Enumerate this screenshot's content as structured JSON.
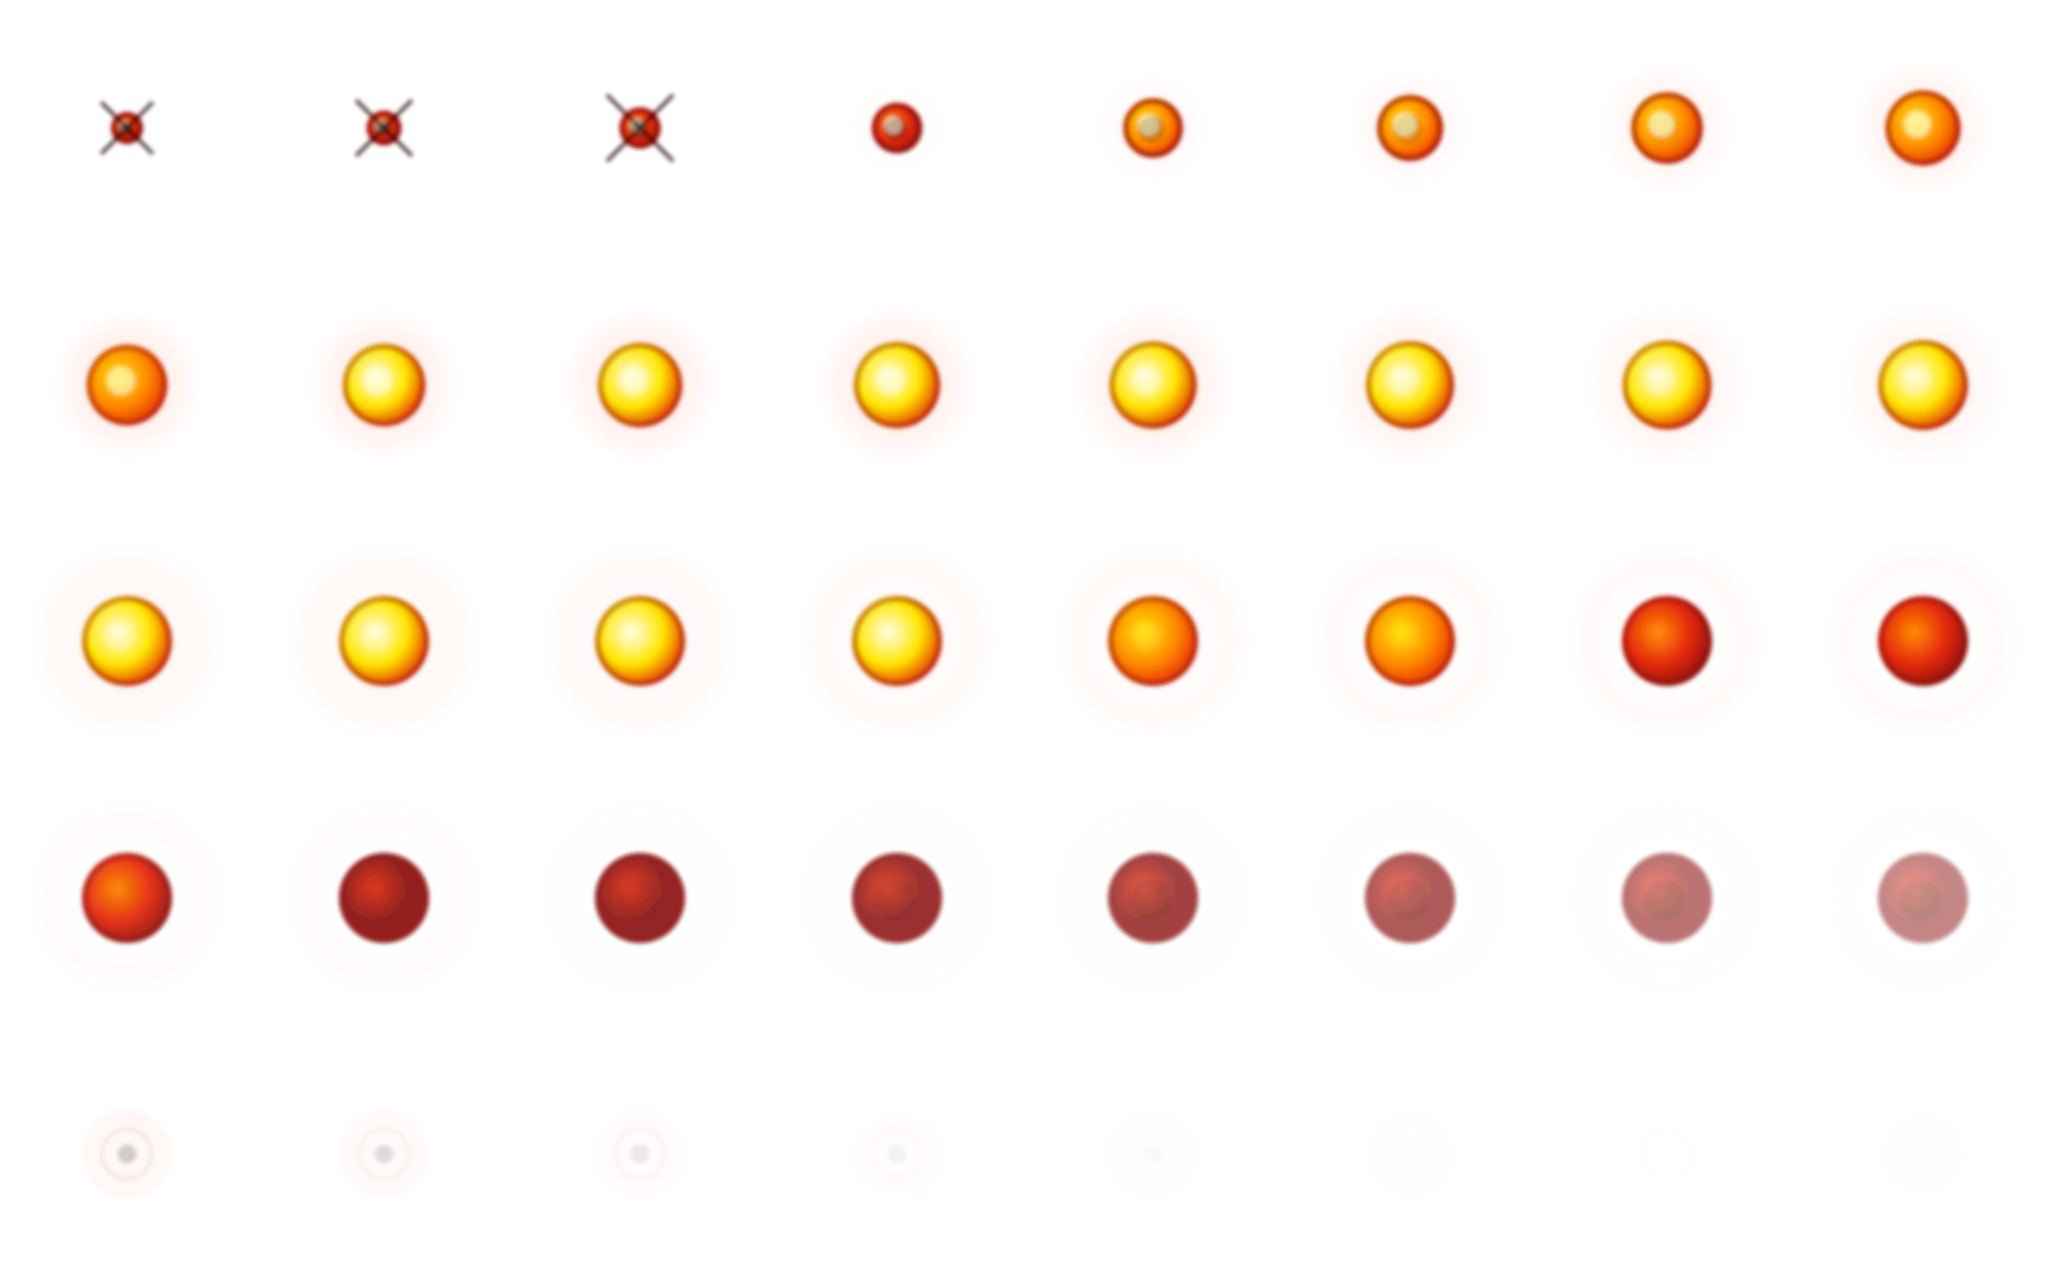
{
  "figure": {
    "rows": 5,
    "cols": 8,
    "frames": [
      {
        "brightness": 0.55,
        "halo": 0.0,
        "radius": 0.35,
        "core": 0.9,
        "dark": 0.9,
        "ring": 0.0,
        "fade": 1.0
      },
      {
        "brightness": 0.55,
        "halo": 0.0,
        "radius": 0.38,
        "core": 0.9,
        "dark": 0.85,
        "ring": 0.0,
        "fade": 1.0
      },
      {
        "brightness": 0.6,
        "halo": 0.05,
        "radius": 0.45,
        "core": 0.9,
        "dark": 0.75,
        "ring": 0.0,
        "fade": 1.0
      },
      {
        "brightness": 0.6,
        "halo": 0.1,
        "radius": 0.55,
        "core": 0.85,
        "dark": 0.65,
        "ring": 0.0,
        "fade": 1.0
      },
      {
        "brightness": 0.62,
        "halo": 0.15,
        "radius": 0.65,
        "core": 0.8,
        "dark": 0.55,
        "ring": 0.0,
        "fade": 1.0
      },
      {
        "brightness": 0.65,
        "halo": 0.2,
        "radius": 0.72,
        "core": 0.75,
        "dark": 0.45,
        "ring": 0.0,
        "fade": 1.0
      },
      {
        "brightness": 0.68,
        "halo": 0.3,
        "radius": 0.78,
        "core": 0.7,
        "dark": 0.35,
        "ring": 0.0,
        "fade": 1.0
      },
      {
        "brightness": 0.7,
        "halo": 0.35,
        "radius": 0.82,
        "core": 0.65,
        "dark": 0.25,
        "ring": 0.0,
        "fade": 1.0
      },
      {
        "brightness": 0.8,
        "halo": 0.45,
        "radius": 0.88,
        "core": 0.6,
        "dark": 0.1,
        "ring": 0.0,
        "fade": 1.0
      },
      {
        "brightness": 0.85,
        "halo": 0.45,
        "radius": 0.9,
        "core": 0.6,
        "dark": 0.1,
        "ring": 0.0,
        "fade": 1.0
      },
      {
        "brightness": 0.9,
        "halo": 0.45,
        "radius": 0.92,
        "core": 0.55,
        "dark": 0.1,
        "ring": 0.0,
        "fade": 1.0
      },
      {
        "brightness": 0.92,
        "halo": 0.45,
        "radius": 0.94,
        "core": 0.5,
        "dark": 0.1,
        "ring": 0.0,
        "fade": 1.0
      },
      {
        "brightness": 0.95,
        "halo": 0.4,
        "radius": 0.95,
        "core": 0.45,
        "dark": 0.1,
        "ring": 0.0,
        "fade": 1.0
      },
      {
        "brightness": 0.96,
        "halo": 0.35,
        "radius": 0.96,
        "core": 0.4,
        "dark": 0.1,
        "ring": 0.0,
        "fade": 1.0
      },
      {
        "brightness": 0.97,
        "halo": 0.3,
        "radius": 0.97,
        "core": 0.35,
        "dark": 0.1,
        "ring": 0.0,
        "fade": 1.0
      },
      {
        "brightness": 0.98,
        "halo": 0.28,
        "radius": 0.98,
        "core": 0.3,
        "dark": 0.1,
        "ring": 0.0,
        "fade": 1.0
      },
      {
        "brightness": 0.98,
        "halo": 0.25,
        "radius": 0.98,
        "core": 0.25,
        "dark": 0.1,
        "ring": 0.1,
        "fade": 1.0
      },
      {
        "brightness": 0.96,
        "halo": 0.22,
        "radius": 0.98,
        "core": 0.2,
        "dark": 0.1,
        "ring": 0.12,
        "fade": 1.0
      },
      {
        "brightness": 0.92,
        "halo": 0.18,
        "radius": 0.98,
        "core": 0.15,
        "dark": 0.12,
        "ring": 0.14,
        "fade": 1.0
      },
      {
        "brightness": 0.86,
        "halo": 0.15,
        "radius": 0.98,
        "core": 0.1,
        "dark": 0.15,
        "ring": 0.15,
        "fade": 1.0
      },
      {
        "brightness": 0.78,
        "halo": 0.12,
        "radius": 0.98,
        "core": 0.08,
        "dark": 0.18,
        "ring": 0.14,
        "fade": 1.0
      },
      {
        "brightness": 0.68,
        "halo": 0.1,
        "radius": 0.98,
        "core": 0.05,
        "dark": 0.22,
        "ring": 0.13,
        "fade": 1.0
      },
      {
        "brightness": 0.58,
        "halo": 0.08,
        "radius": 0.98,
        "core": 0.03,
        "dark": 0.25,
        "ring": 0.12,
        "fade": 1.0
      },
      {
        "brightness": 0.5,
        "halo": 0.06,
        "radius": 0.98,
        "core": 0.02,
        "dark": 0.28,
        "ring": 0.11,
        "fade": 1.0
      },
      {
        "brightness": 0.45,
        "halo": 0.05,
        "radius": 0.98,
        "core": 0.0,
        "dark": 0.32,
        "ring": 0.1,
        "fade": 0.95
      },
      {
        "brightness": 0.4,
        "halo": 0.04,
        "radius": 0.98,
        "core": 0.0,
        "dark": 0.35,
        "ring": 0.09,
        "fade": 0.92
      },
      {
        "brightness": 0.35,
        "halo": 0.03,
        "radius": 0.98,
        "core": 0.0,
        "dark": 0.4,
        "ring": 0.08,
        "fade": 0.9
      },
      {
        "brightness": 0.3,
        "halo": 0.02,
        "radius": 0.98,
        "core": 0.0,
        "dark": 0.45,
        "ring": 0.07,
        "fade": 0.85
      },
      {
        "brightness": 0.26,
        "halo": 0.02,
        "radius": 0.98,
        "core": 0.0,
        "dark": 0.5,
        "ring": 0.06,
        "fade": 0.78
      },
      {
        "brightness": 0.22,
        "halo": 0.01,
        "radius": 0.98,
        "core": 0.0,
        "dark": 0.55,
        "ring": 0.05,
        "fade": 0.68
      },
      {
        "brightness": 0.18,
        "halo": 0.01,
        "radius": 0.98,
        "core": 0.0,
        "dark": 0.6,
        "ring": 0.04,
        "fade": 0.58
      },
      {
        "brightness": 0.15,
        "halo": 0.0,
        "radius": 0.98,
        "core": 0.0,
        "dark": 0.65,
        "ring": 0.03,
        "fade": 0.5
      },
      {
        "brightness": 0.12,
        "halo": 0.0,
        "radius": 0.98,
        "core": 0.0,
        "dark": 0.55,
        "ring": 0.0,
        "fade": 0.38
      },
      {
        "brightness": 0.1,
        "halo": 0.0,
        "radius": 0.98,
        "core": 0.0,
        "dark": 0.45,
        "ring": 0.0,
        "fade": 0.32
      },
      {
        "brightness": 0.08,
        "halo": 0.0,
        "radius": 0.98,
        "core": 0.0,
        "dark": 0.35,
        "ring": 0.0,
        "fade": 0.26
      },
      {
        "brightness": 0.06,
        "halo": 0.0,
        "radius": 0.98,
        "core": 0.0,
        "dark": 0.25,
        "ring": 0.0,
        "fade": 0.2
      },
      {
        "brightness": 0.05,
        "halo": 0.0,
        "radius": 0.98,
        "core": 0.0,
        "dark": 0.15,
        "ring": 0.0,
        "fade": 0.16
      },
      {
        "brightness": 0.04,
        "halo": 0.0,
        "radius": 0.98,
        "core": 0.0,
        "dark": 0.1,
        "ring": 0.0,
        "fade": 0.12
      },
      {
        "brightness": 0.03,
        "halo": 0.0,
        "radius": 0.98,
        "core": 0.0,
        "dark": 0.06,
        "ring": 0.0,
        "fade": 0.1
      },
      {
        "brightness": 0.02,
        "halo": 0.0,
        "radius": 0.98,
        "core": 0.0,
        "dark": 0.04,
        "ring": 0.0,
        "fade": 0.08
      }
    ],
    "colors": {
      "background": "#ffffff",
      "hot_white": "#fffde0",
      "yellow": "#ffe600",
      "orange": "#ff8a00",
      "red": "#e62a0a",
      "dark_red": "#8a1008",
      "black": "#1a0000",
      "halo": "#ffb0a0"
    }
  }
}
